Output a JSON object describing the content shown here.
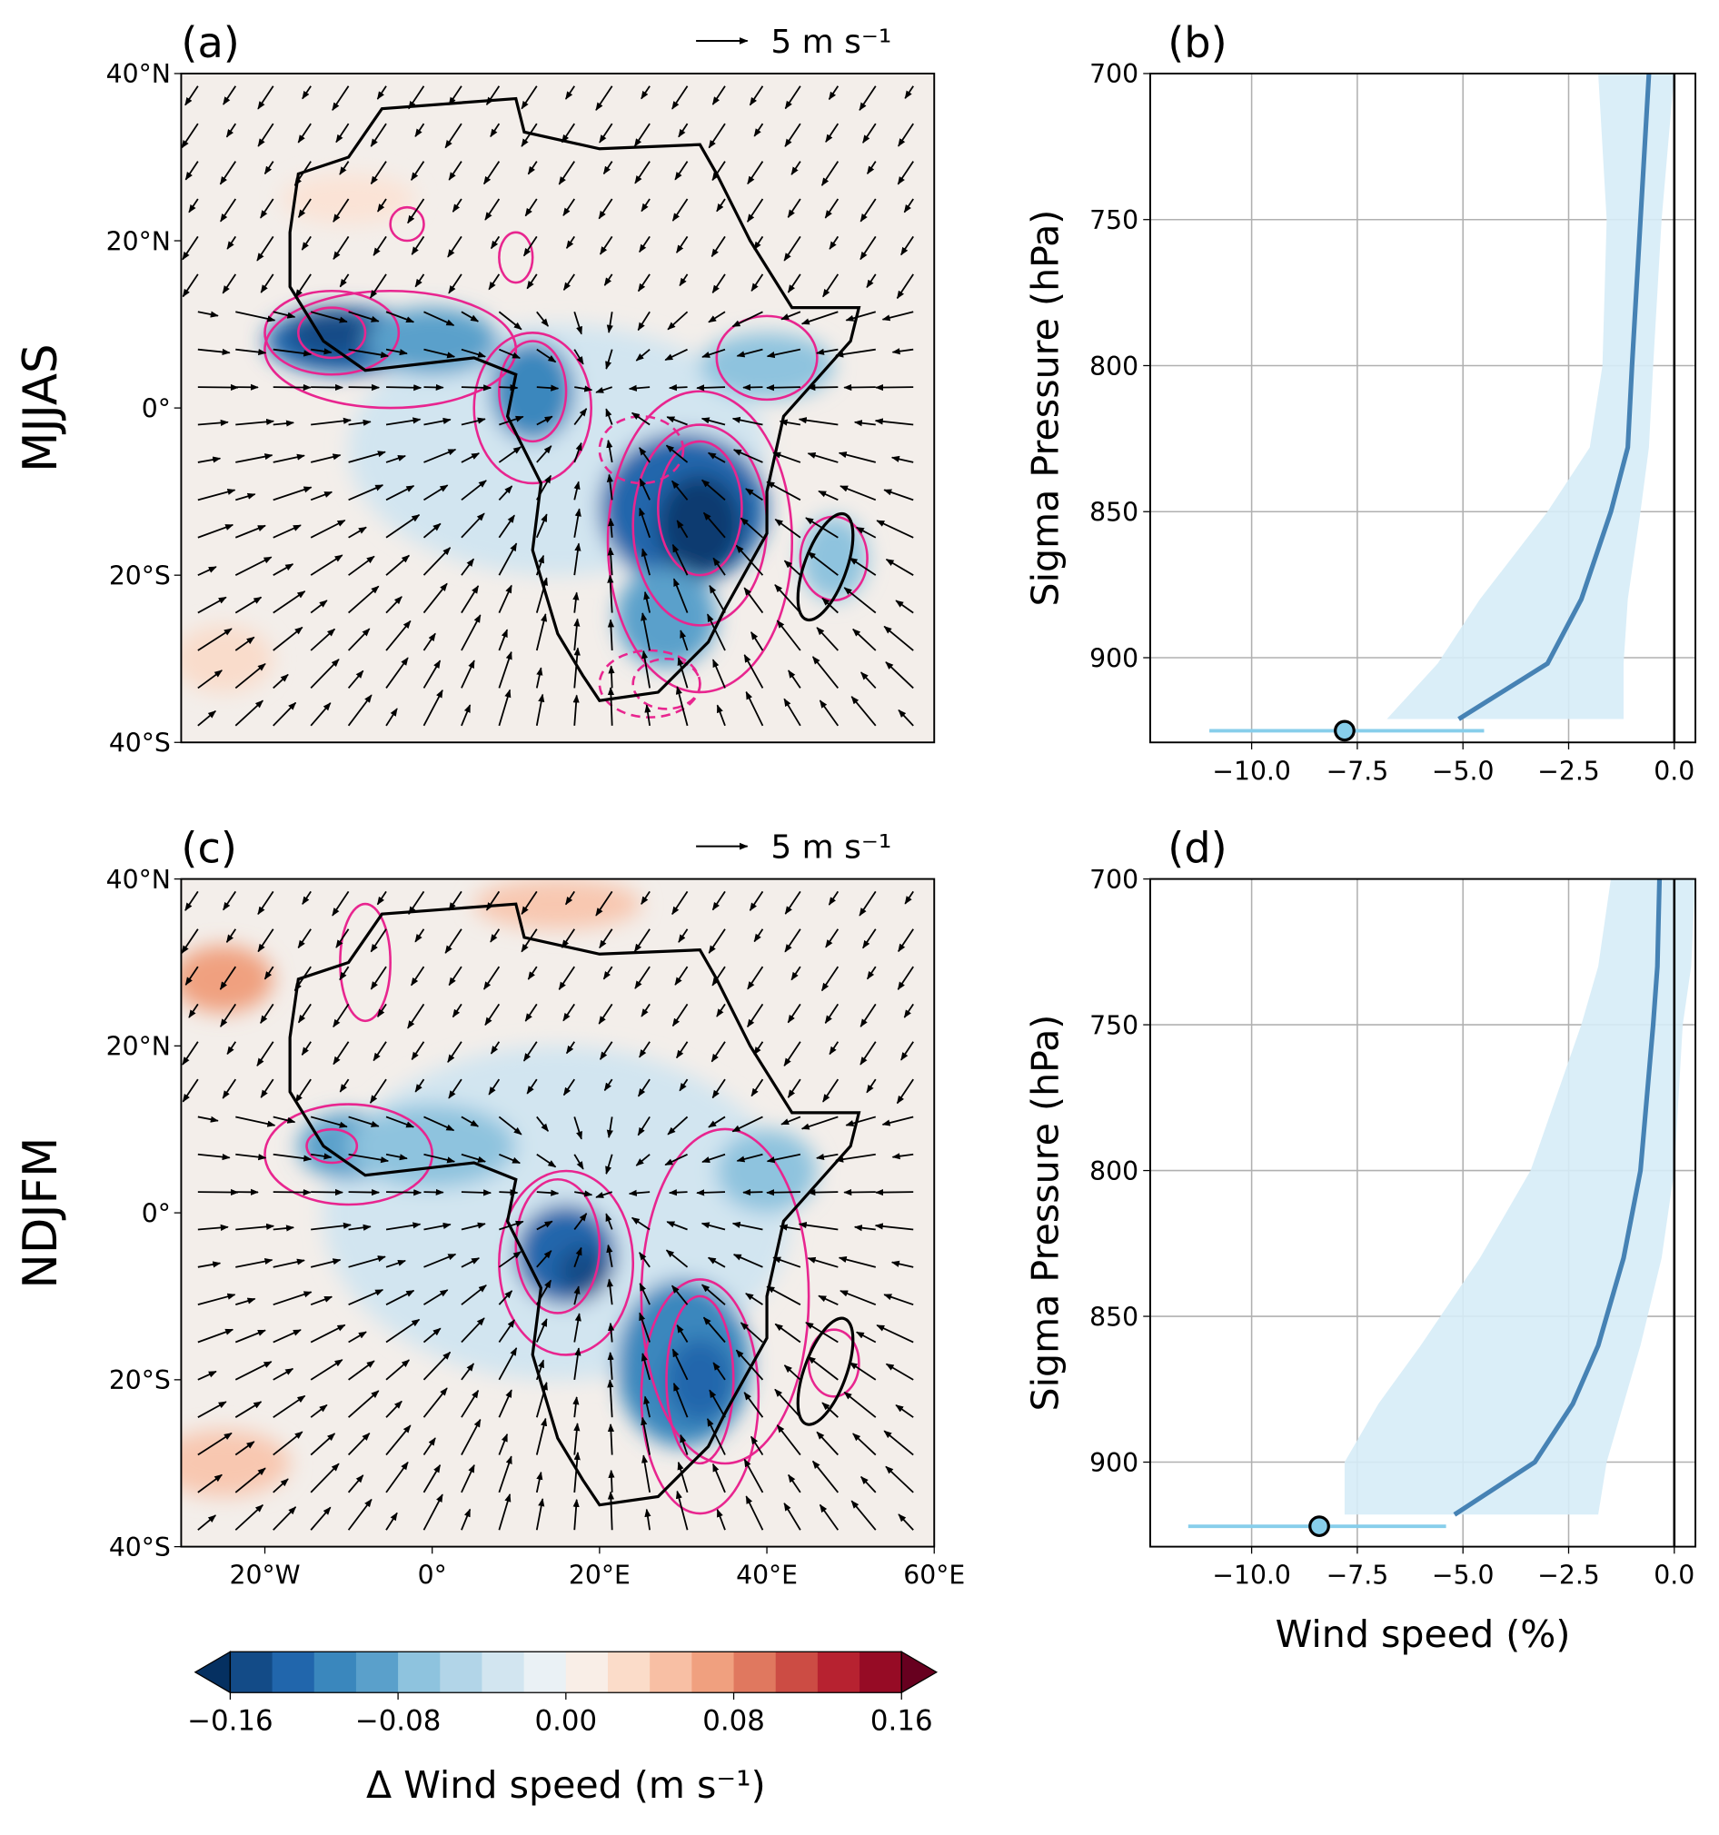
{
  "chart_data": [
    {
      "type": "map",
      "title": "(a)",
      "row_label": "MJJAS",
      "reference_arrow_label": "5 m s⁻¹",
      "xlim": [
        -30,
        60
      ],
      "ylim": [
        -40,
        40
      ],
      "yticks": [
        {
          "value": 40,
          "label": "40°N"
        },
        {
          "value": 20,
          "label": "20°N"
        },
        {
          "value": 0,
          "label": "0°"
        },
        {
          "value": -20,
          "label": "20°S"
        },
        {
          "value": -40,
          "label": "40°S"
        }
      ]
    },
    {
      "type": "profile",
      "title": "(b)",
      "ylabel": "Sigma Pressure (hPa)",
      "xlim": [
        -12.4,
        0.5
      ],
      "ylim": [
        929,
        700
      ],
      "xticks": [
        {
          "value": -10,
          "label": "−10.0"
        },
        {
          "value": -7.5,
          "label": "−7.5"
        },
        {
          "value": -5,
          "label": "−5.0"
        },
        {
          "value": -2.5,
          "label": "−2.5"
        },
        {
          "value": 0,
          "label": "0.0"
        }
      ],
      "yticks": [
        700,
        750,
        800,
        850,
        900
      ],
      "grid": true,
      "reference_line": 0,
      "pressure": [
        700,
        750,
        800,
        828,
        850,
        880,
        902,
        921
      ],
      "profile": {
        "color": "#4682b4",
        "values": [
          -0.6,
          -0.8,
          -1.0,
          -1.1,
          -1.5,
          -2.2,
          -3.0,
          -5.1
        ]
      },
      "band": {
        "color": "#d6ecf7",
        "lower": [
          -1.8,
          -1.6,
          -1.7,
          -2.0,
          -3.0,
          -4.6,
          -5.6,
          -6.8
        ],
        "upper": [
          0.0,
          -0.3,
          -0.5,
          -0.6,
          -0.8,
          -1.1,
          -1.2,
          -1.2
        ]
      },
      "surface": {
        "color": "#87ceeb",
        "pressure": 925,
        "value": -7.8,
        "low": -11.0,
        "high": -4.5
      }
    },
    {
      "type": "map",
      "title": "(c)",
      "row_label": "NDJFM",
      "reference_arrow_label": "5 m s⁻¹",
      "xlim": [
        -30,
        60
      ],
      "ylim": [
        -40,
        40
      ],
      "xticks": [
        {
          "value": -20,
          "label": "20°W"
        },
        {
          "value": 0,
          "label": "0°"
        },
        {
          "value": 20,
          "label": "20°E"
        },
        {
          "value": 40,
          "label": "40°E"
        },
        {
          "value": 60,
          "label": "60°E"
        }
      ],
      "yticks": [
        {
          "value": 40,
          "label": "40°N"
        },
        {
          "value": 20,
          "label": "20°N"
        },
        {
          "value": 0,
          "label": "0°"
        },
        {
          "value": -20,
          "label": "20°S"
        },
        {
          "value": -40,
          "label": "40°S"
        }
      ]
    },
    {
      "type": "profile",
      "title": "(d)",
      "ylabel": "Sigma Pressure (hPa)",
      "xlabel": "Wind speed (%)",
      "xlim": [
        -12.4,
        0.5
      ],
      "ylim": [
        929,
        700
      ],
      "xticks": [
        {
          "value": -10,
          "label": "−10.0"
        },
        {
          "value": -7.5,
          "label": "−7.5"
        },
        {
          "value": -5,
          "label": "−5.0"
        },
        {
          "value": -2.5,
          "label": "−2.5"
        },
        {
          "value": 0,
          "label": "0.0"
        }
      ],
      "yticks": [
        700,
        750,
        800,
        850,
        900
      ],
      "grid": true,
      "reference_line": 0,
      "pressure": [
        700,
        730,
        750,
        800,
        830,
        860,
        880,
        900,
        918
      ],
      "profile": {
        "color": "#4682b4",
        "values": [
          -0.35,
          -0.4,
          -0.5,
          -0.8,
          -1.2,
          -1.8,
          -2.4,
          -3.3,
          -5.2
        ]
      },
      "band": {
        "color": "#d6ecf7",
        "lower": [
          -1.5,
          -1.8,
          -2.2,
          -3.4,
          -4.6,
          -6.0,
          -7.0,
          -7.8,
          -7.8
        ],
        "upper": [
          0.5,
          0.4,
          0.2,
          0.0,
          -0.3,
          -0.8,
          -1.2,
          -1.6,
          -1.8
        ]
      },
      "surface": {
        "color": "#87ceeb",
        "pressure": 922,
        "value": -8.4,
        "low": -11.5,
        "high": -5.4
      }
    },
    {
      "type": "colorbar",
      "label": "Δ Wind speed (m s⁻¹)",
      "bounds": [
        -0.16,
        -0.14,
        -0.12,
        -0.1,
        -0.08,
        -0.06,
        -0.04,
        -0.02,
        0,
        0.02,
        0.04,
        0.06,
        0.08,
        0.1,
        0.12,
        0.14,
        0.16
      ],
      "colors": [
        "#134b87",
        "#2166ac",
        "#3a87bd",
        "#5aa0cb",
        "#8ec3de",
        "#b2d5e8",
        "#d2e5f0",
        "#eaf1f5",
        "#f9eee7",
        "#fbdcc9",
        "#f8bfa4",
        "#f0a07f",
        "#e0785f",
        "#cc4c44",
        "#b72230",
        "#960b25"
      ],
      "under_color": "#053061",
      "over_color": "#67001f",
      "ticks": [
        {
          "value": -0.16,
          "label": "−0.16"
        },
        {
          "value": -0.08,
          "label": "−0.08"
        },
        {
          "value": 0,
          "label": "0.00"
        },
        {
          "value": 0.08,
          "label": "0.08"
        },
        {
          "value": 0.16,
          "label": "0.16"
        }
      ]
    }
  ]
}
